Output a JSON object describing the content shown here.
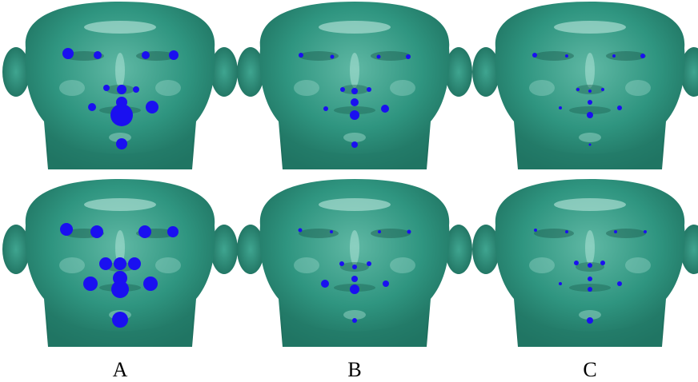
{
  "labels": [
    "A",
    "B",
    "C"
  ]
}
